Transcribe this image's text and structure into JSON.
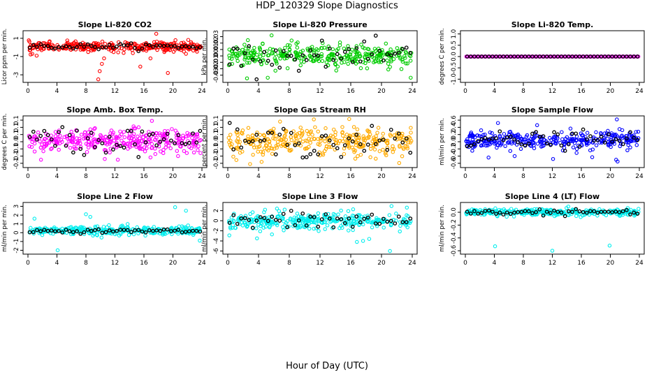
{
  "figure": {
    "title": "HDP_120329  Slope Diagnostics",
    "xlabel": "Hour of Day (UTC)"
  },
  "chart_data": [
    {
      "type": "scatter",
      "title": "Slope Li-820 CO2",
      "ylabel": "Licor ppm per min.",
      "xlim": [
        0,
        24
      ],
      "xticks": [
        0,
        4,
        8,
        12,
        16,
        20,
        24
      ],
      "ylim": [
        -3.6,
        1.6
      ],
      "yticks": [
        1,
        -1,
        -3
      ],
      "color": "#ff0000",
      "center": 0.1,
      "spread": 0.25,
      "outliers": [
        [
          9.7,
          -3.5
        ],
        [
          9.9,
          -2.6
        ],
        [
          10.2,
          -1.8
        ],
        [
          10.5,
          -1.2
        ],
        [
          17.7,
          1.5
        ],
        [
          19.3,
          -2.8
        ],
        [
          15.5,
          -2.1
        ],
        [
          16.9,
          -1.2
        ],
        [
          1.2,
          -0.9
        ],
        [
          13.2,
          -0.6
        ],
        [
          21.8,
          -0.7
        ],
        [
          0.6,
          -0.7
        ]
      ],
      "black_spread": 0.15
    },
    {
      "type": "scatter",
      "title": "Slope Li-820 Pressure",
      "ylabel": "kPa per min.",
      "xlim": [
        0,
        24
      ],
      "xticks": [
        0,
        4,
        8,
        12,
        16,
        20,
        24
      ],
      "ylim": [
        -0.038,
        0.036
      ],
      "yticks": [
        0.03,
        0.02,
        0.01,
        0.0,
        -0.01,
        -0.02,
        -0.03
      ],
      "color": "#00cc00",
      "center": 0.0,
      "spread": 0.008,
      "outliers": [
        [
          2.5,
          -0.035
        ],
        [
          5.2,
          -0.034
        ],
        [
          23.8,
          -0.034
        ],
        [
          5.7,
          0.032
        ],
        [
          8.3,
          0.024
        ],
        [
          9.1,
          0.021
        ],
        [
          14.6,
          0.021
        ],
        [
          6.2,
          -0.023
        ]
      ],
      "black_spread": 0.01
    },
    {
      "type": "scatter",
      "title": "Slope Li-820 Temp.",
      "ylabel": "degrees C per min.",
      "xlim": [
        0,
        24
      ],
      "xticks": [
        0,
        4,
        8,
        12,
        16,
        20,
        24
      ],
      "ylim": [
        -1.05,
        1.05
      ],
      "yticks": [
        1.0,
        0.5,
        0.0,
        -0.5,
        -1.0
      ],
      "color": "#ff00ff",
      "center": 0.0,
      "spread": 0.0,
      "outliers": [],
      "black_spread": 0.0
    },
    {
      "type": "scatter",
      "title": "Slope Amb. Box Temp.",
      "ylabel": "degrees C per min.",
      "xlim": [
        0,
        24
      ],
      "xticks": [
        0,
        4,
        8,
        12,
        16,
        20,
        24
      ],
      "ylim": [
        -0.165,
        0.165
      ],
      "yticks": [
        0.15,
        0.1,
        0.05,
        0.0,
        -0.05,
        -0.1,
        -0.15
      ],
      "color": "#ff00ff",
      "center": 0.005,
      "spread": 0.04,
      "outliers": [
        [
          1.8,
          -0.125
        ],
        [
          17.1,
          0.145
        ],
        [
          12.4,
          -0.125
        ],
        [
          10.6,
          -0.12
        ]
      ],
      "black_spread": 0.05
    },
    {
      "type": "scatter",
      "title": "Slope Gas Stream RH",
      "ylabel": "percent per min.",
      "xlim": [
        0,
        24
      ],
      "xticks": [
        0,
        4,
        8,
        12,
        16,
        20,
        24
      ],
      "ylim": [
        -0.165,
        0.165
      ],
      "yticks": [
        0.15,
        0.1,
        0.05,
        0.0,
        -0.05,
        -0.1,
        -0.15
      ],
      "color": "#ffaa00",
      "center": 0.0,
      "spread": 0.045,
      "outliers": [
        [
          2.9,
          -0.155
        ],
        [
          11.2,
          0.155
        ],
        [
          15.8,
          0.158
        ],
        [
          22.3,
          -0.148
        ],
        [
          6.8,
          0.14
        ],
        [
          4.4,
          -0.14
        ]
      ],
      "black_spread": 0.05
    },
    {
      "type": "scatter",
      "title": "Slope Sample Flow",
      "ylabel": "ml/min per min.",
      "xlim": [
        0,
        24
      ],
      "xticks": [
        0,
        4,
        8,
        12,
        16,
        20,
        24
      ],
      "ylim": [
        -0.66,
        0.66
      ],
      "yticks": [
        0.6,
        0.4,
        0.2,
        0.0,
        -0.2,
        -0.4,
        -0.6
      ],
      "color": "#0000ff",
      "center": 0.04,
      "spread": 0.12,
      "outliers": [
        [
          20.9,
          0.62
        ],
        [
          20.8,
          -0.5
        ],
        [
          21.0,
          -0.55
        ],
        [
          12.1,
          -0.48
        ],
        [
          4.5,
          0.52
        ],
        [
          6.8,
          -0.4
        ],
        [
          9.9,
          0.46
        ],
        [
          3.2,
          -0.44
        ],
        [
          17.5,
          -0.43
        ]
      ],
      "black_spread": 0.12
    },
    {
      "type": "scatter",
      "title": "Slope Line 2 Flow",
      "ylabel": "ml/min per min.",
      "xlim": [
        0,
        24
      ],
      "xticks": [
        0,
        4,
        8,
        12,
        16,
        20,
        24
      ],
      "ylim": [
        -2.2,
        3.2
      ],
      "yticks": [
        3,
        2,
        1,
        0,
        -1,
        -2
      ],
      "color": "#00eeee",
      "center": 0.2,
      "spread": 0.25,
      "outliers": [
        [
          4.1,
          -2.0
        ],
        [
          20.3,
          2.9
        ],
        [
          21.8,
          2.5
        ],
        [
          8.0,
          2.1
        ],
        [
          8.6,
          1.8
        ],
        [
          23.7,
          -0.9
        ],
        [
          0.9,
          1.6
        ]
      ],
      "black_spread": 0.1
    },
    {
      "type": "scatter",
      "title": "Slope Line 3 Flow",
      "ylabel": "ml/min per min.",
      "xlim": [
        0,
        24
      ],
      "xticks": [
        0,
        4,
        8,
        12,
        16,
        20,
        24
      ],
      "ylim": [
        -6.2,
        3.2
      ],
      "yticks": [
        2,
        0,
        -2,
        -4,
        -6
      ],
      "color": "#00eeee",
      "center": 0.0,
      "spread": 0.8,
      "outliers": [
        [
          21.1,
          -6.0
        ],
        [
          0.2,
          -2.9
        ],
        [
          3.8,
          -3.5
        ],
        [
          16.8,
          -4.2
        ],
        [
          17.6,
          -4.0
        ],
        [
          18.4,
          -3.6
        ],
        [
          21.3,
          2.9
        ],
        [
          23.3,
          2.6
        ],
        [
          6.4,
          2.4
        ],
        [
          7.4,
          2.2
        ]
      ],
      "black_spread": 0.9
    },
    {
      "type": "scatter",
      "title": "Slope Line 4 (LT) Flow",
      "ylabel": "ml/min per min.",
      "xlim": [
        0,
        24
      ],
      "xticks": [
        0,
        4,
        8,
        12,
        16,
        20,
        24
      ],
      "ylim": [
        -0.62,
        0.12
      ],
      "yticks": [
        0.0,
        -0.2,
        -0.4,
        -0.6
      ],
      "color": "#00eeee",
      "center": 0.0,
      "spread": 0.025,
      "outliers": [
        [
          4.1,
          -0.53
        ],
        [
          12.0,
          -0.6
        ],
        [
          19.9,
          -0.52
        ],
        [
          12.3,
          -0.06
        ],
        [
          16.2,
          -0.05
        ]
      ],
      "black_spread": 0.02
    }
  ]
}
